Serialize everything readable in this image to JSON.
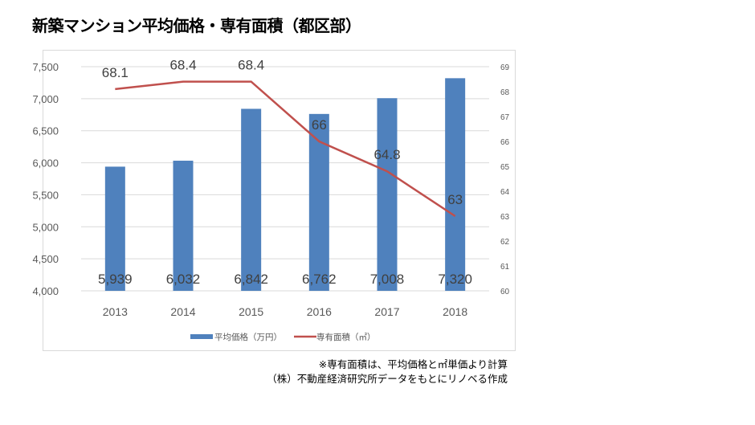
{
  "title": "新築マンション平均価格・専有面積（都区部）",
  "chart_data": {
    "type": "bar+line",
    "categories": [
      "2013",
      "2014",
      "2015",
      "2016",
      "2017",
      "2018"
    ],
    "series": [
      {
        "name": "平均価格（万円）",
        "type": "bar",
        "axis": "left",
        "color": "#4f81bd",
        "values": [
          5939,
          6032,
          6842,
          6762,
          7008,
          7320
        ],
        "labels": [
          "5,939",
          "6,032",
          "6,842",
          "6,762",
          "7,008",
          "7,320"
        ]
      },
      {
        "name": "専有面積（㎡）",
        "type": "line",
        "axis": "right",
        "color": "#c0504d",
        "values": [
          68.1,
          68.4,
          68.4,
          66,
          64.8,
          63
        ],
        "labels": [
          "68.1",
          "68.4",
          "68.4",
          "66",
          "64.8",
          "63"
        ]
      }
    ],
    "left_axis": {
      "ylim": [
        4000,
        7500
      ],
      "ticks": [
        "4,000",
        "4,500",
        "5,000",
        "5,500",
        "6,000",
        "6,500",
        "7,000",
        "7,500"
      ]
    },
    "right_axis": {
      "ylim": [
        60,
        69
      ],
      "ticks": [
        "60",
        "61",
        "62",
        "63",
        "64",
        "65",
        "66",
        "67",
        "68",
        "69"
      ]
    },
    "grid": true,
    "legend": "bottom"
  },
  "notes": [
    "※専有面積は、平均価格と㎡単価より計算",
    "（株）不動産経済研究所データをもとにリノベる作成"
  ]
}
